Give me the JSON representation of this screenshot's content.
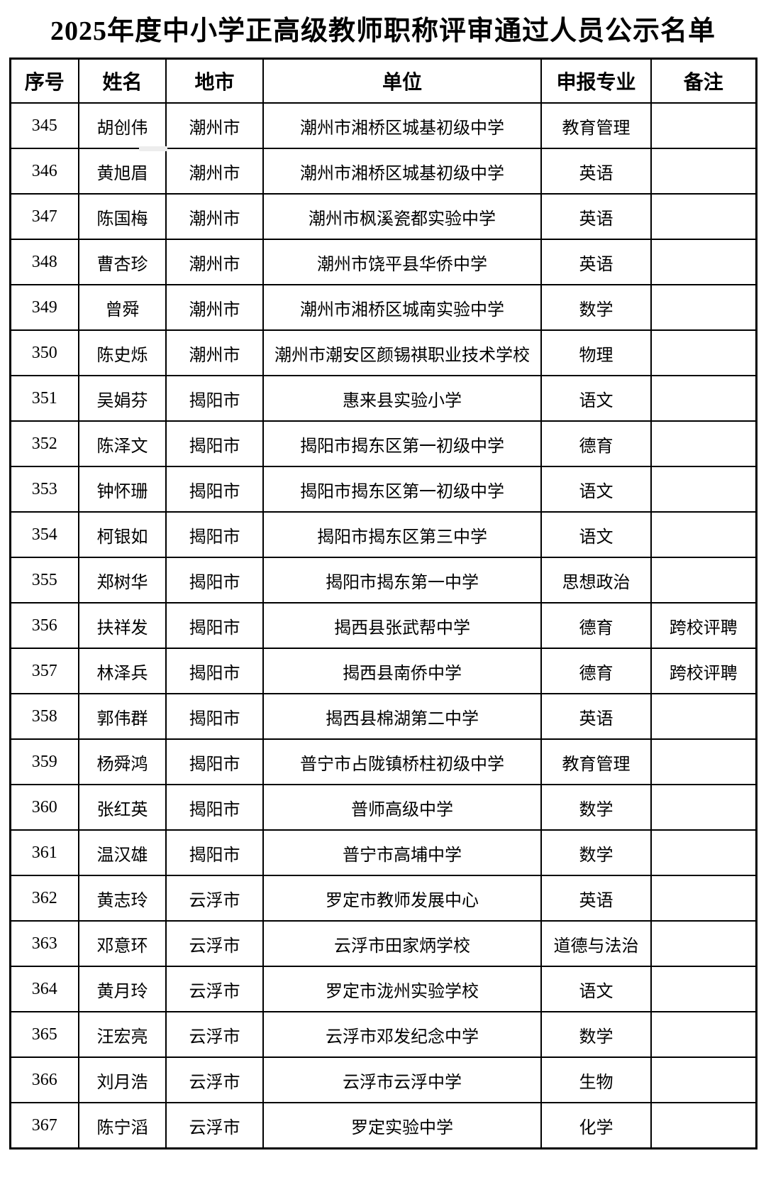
{
  "page": {
    "title": "2025年度中小学正高级教师职称评审通过人员公示名单"
  },
  "table": {
    "headers": [
      "序号",
      "姓名",
      "地市",
      "单位",
      "申报专业",
      "备注"
    ],
    "rows": [
      {
        "no": "345",
        "name": "胡创伟",
        "city": "潮州市",
        "unit": "潮州市湘桥区城基初级中学",
        "subject": "教育管理",
        "remark": ""
      },
      {
        "no": "346",
        "name": "黄旭眉",
        "city": "潮州市",
        "unit": "潮州市湘桥区城基初级中学",
        "subject": "英语",
        "remark": ""
      },
      {
        "no": "347",
        "name": "陈国梅",
        "city": "潮州市",
        "unit": "潮州市枫溪瓷都实验中学",
        "subject": "英语",
        "remark": ""
      },
      {
        "no": "348",
        "name": "曹杏珍",
        "city": "潮州市",
        "unit": "潮州市饶平县华侨中学",
        "subject": "英语",
        "remark": ""
      },
      {
        "no": "349",
        "name": "曾舜",
        "city": "潮州市",
        "unit": "潮州市湘桥区城南实验中学",
        "subject": "数学",
        "remark": ""
      },
      {
        "no": "350",
        "name": "陈史烁",
        "city": "潮州市",
        "unit": "潮州市潮安区颜锡祺职业技术学校",
        "subject": "物理",
        "remark": ""
      },
      {
        "no": "351",
        "name": "吴娟芬",
        "city": "揭阳市",
        "unit": "惠来县实验小学",
        "subject": "语文",
        "remark": ""
      },
      {
        "no": "352",
        "name": "陈泽文",
        "city": "揭阳市",
        "unit": "揭阳市揭东区第一初级中学",
        "subject": "德育",
        "remark": ""
      },
      {
        "no": "353",
        "name": "钟怀珊",
        "city": "揭阳市",
        "unit": "揭阳市揭东区第一初级中学",
        "subject": "语文",
        "remark": ""
      },
      {
        "no": "354",
        "name": "柯银如",
        "city": "揭阳市",
        "unit": "揭阳市揭东区第三中学",
        "subject": "语文",
        "remark": ""
      },
      {
        "no": "355",
        "name": "郑树华",
        "city": "揭阳市",
        "unit": "揭阳市揭东第一中学",
        "subject": "思想政治",
        "remark": ""
      },
      {
        "no": "356",
        "name": "扶祥发",
        "city": "揭阳市",
        "unit": "揭西县张武帮中学",
        "subject": "德育",
        "remark": "跨校评聘"
      },
      {
        "no": "357",
        "name": "林泽兵",
        "city": "揭阳市",
        "unit": "揭西县南侨中学",
        "subject": "德育",
        "remark": "跨校评聘"
      },
      {
        "no": "358",
        "name": "郭伟群",
        "city": "揭阳市",
        "unit": "揭西县棉湖第二中学",
        "subject": "英语",
        "remark": ""
      },
      {
        "no": "359",
        "name": "杨舜鸿",
        "city": "揭阳市",
        "unit": "普宁市占陇镇桥柱初级中学",
        "subject": "教育管理",
        "remark": ""
      },
      {
        "no": "360",
        "name": "张红英",
        "city": "揭阳市",
        "unit": "普师高级中学",
        "subject": "数学",
        "remark": ""
      },
      {
        "no": "361",
        "name": "温汉雄",
        "city": "揭阳市",
        "unit": "普宁市高埔中学",
        "subject": "数学",
        "remark": ""
      },
      {
        "no": "362",
        "name": "黄志玲",
        "city": "云浮市",
        "unit": "罗定市教师发展中心",
        "subject": "英语",
        "remark": ""
      },
      {
        "no": "363",
        "name": "邓意环",
        "city": "云浮市",
        "unit": "云浮市田家炳学校",
        "subject": "道德与法治",
        "remark": ""
      },
      {
        "no": "364",
        "name": "黄月玲",
        "city": "云浮市",
        "unit": "罗定市泷州实验学校",
        "subject": "语文",
        "remark": ""
      },
      {
        "no": "365",
        "name": "汪宏亮",
        "city": "云浮市",
        "unit": "云浮市邓发纪念中学",
        "subject": "数学",
        "remark": ""
      },
      {
        "no": "366",
        "name": "刘月浩",
        "city": "云浮市",
        "unit": "云浮市云浮中学",
        "subject": "生物",
        "remark": ""
      },
      {
        "no": "367",
        "name": "陈宁滔",
        "city": "云浮市",
        "unit": "罗定实验中学",
        "subject": "化学",
        "remark": ""
      }
    ]
  },
  "colors": {
    "background": "#ffffff",
    "border": "#000000",
    "text": "#000000"
  }
}
